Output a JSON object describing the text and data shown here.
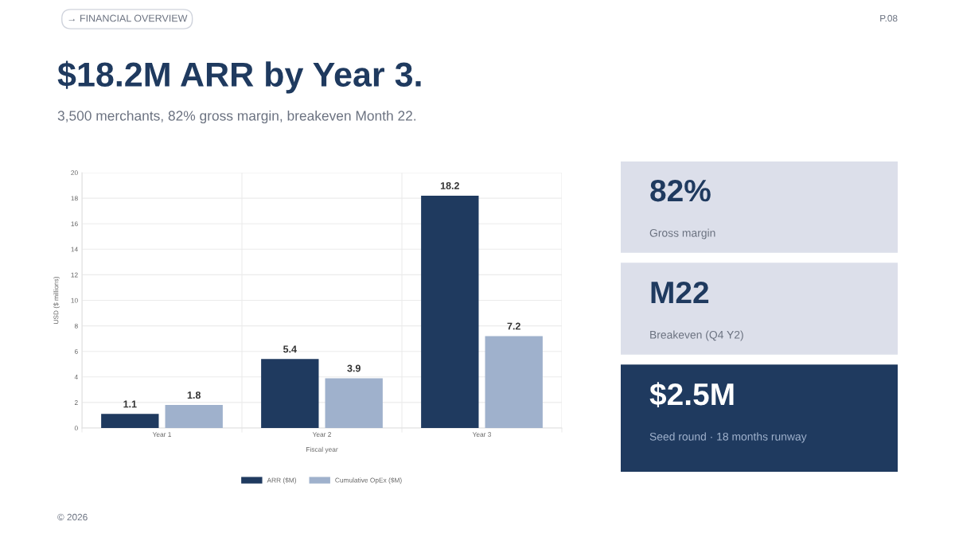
{
  "chart_data": [
    {
      "type": "bar",
      "title": "$18.2M ARR by Year 3.",
      "subtitle": "3,500 merchants, 82% gross margin, breakeven Month 22.",
      "annotations": [
        "→ FINANCIAL OVERVIEW",
        "P.08",
        "© 2026"
      ],
      "xlabel": "Fiscal year",
      "ylabel": "USD ($ millions)",
      "categories": [
        "Year 1",
        "Year 2",
        "Year 3"
      ],
      "series": [
        {
          "name": "ARR ($M)",
          "color": "#1f3a5f",
          "values": [
            1.1,
            5.4,
            18.2
          ]
        },
        {
          "name": "Cumulative OpEx ($M)",
          "color": "#9fb1cc",
          "values": [
            1.8,
            3.9,
            7.2
          ]
        }
      ],
      "ylim": [
        0,
        20
      ],
      "yticks": [
        0,
        2,
        4,
        6,
        8,
        10,
        12,
        14,
        16,
        18,
        20
      ],
      "grid": true,
      "legend": "bottom",
      "data_labels": true
    },
    {
      "type": "other",
      "annotations": [
        "82%",
        "Gross margin",
        "M22",
        "Breakeven (Q4 Y2)",
        "$2.5M",
        "Seed round · 18 months runway"
      ],
      "colors": [
        "#dcdfea",
        "#dcdfea",
        "#1f3a5f"
      ]
    }
  ]
}
